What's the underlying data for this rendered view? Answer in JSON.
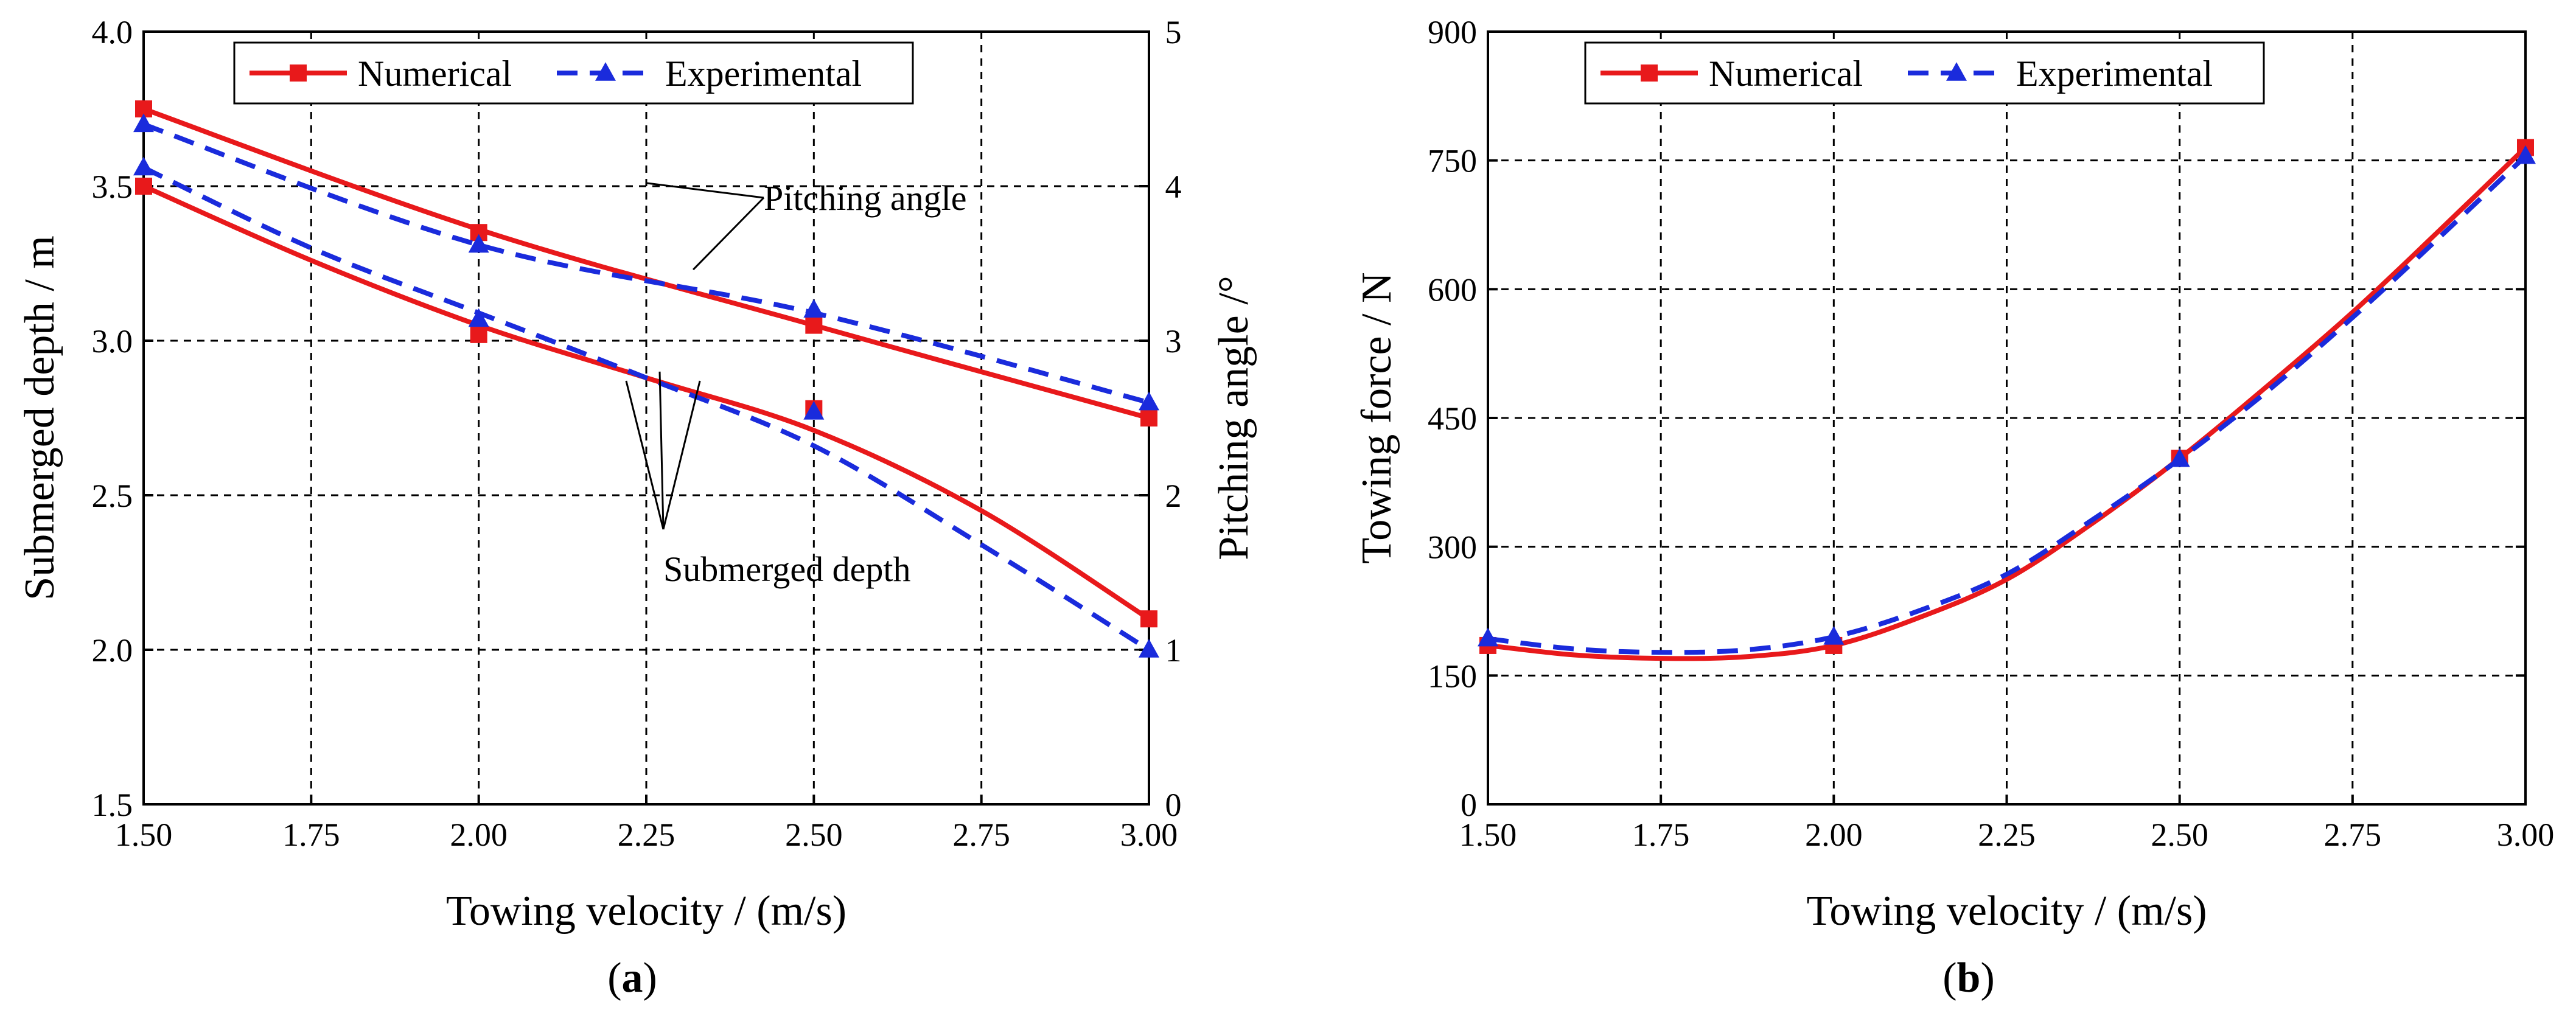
{
  "chart_data": [
    {
      "type": "line",
      "panel_caption": "(a)",
      "caption_letter": "a",
      "xlabel": "Towing velocity / (m/s)",
      "ylabel": "Submerged depth / m",
      "y2label": "Pitching angle /°",
      "xlim": [
        1.5,
        3.0
      ],
      "ylim": [
        1.5,
        4.0
      ],
      "y2lim": [
        0,
        5
      ],
      "xticks": [
        "1.50",
        "1.75",
        "2.00",
        "2.25",
        "2.50",
        "2.75",
        "3.00"
      ],
      "yticks": [
        "1.5",
        "2.0",
        "2.5",
        "3.0",
        "3.5",
        "4.0"
      ],
      "y2ticks": [
        "0",
        "1",
        "2",
        "3",
        "4",
        "5"
      ],
      "grid": true,
      "legend": {
        "position": "top-left",
        "entries": [
          {
            "label": "Numerical",
            "color": "#e8191b",
            "marker": "square",
            "dashed": false
          },
          {
            "label": "Experimental",
            "color": "#1a2bdc",
            "marker": "triangle",
            "dashed": true
          }
        ]
      },
      "annotations": [
        {
          "text": "Pitching angle",
          "points": [
            [
              2.25,
              3.51
            ],
            [
              2.32,
              3.23
            ]
          ]
        },
        {
          "text": "Submerged depth",
          "points": [
            [
              2.22,
              2.87
            ],
            [
              2.27,
              2.9
            ],
            [
              2.33,
              2.87
            ]
          ]
        }
      ],
      "series": [
        {
          "name": "Numerical",
          "quantity": "Pitching angle",
          "axis": "y2",
          "color": "#e8191b",
          "dashed": false,
          "marker": "square",
          "x": [
            1.5,
            2.0,
            2.5,
            3.0
          ],
          "values": [
            4.5,
            3.7,
            3.1,
            2.5
          ],
          "curve_x": [
            1.5,
            2.0,
            2.5,
            3.0
          ],
          "curve_values": [
            4.5,
            3.72,
            3.1,
            2.5
          ]
        },
        {
          "name": "Experimental",
          "quantity": "Pitching angle",
          "axis": "y2",
          "color": "#1a2bdc",
          "dashed": true,
          "marker": "triangle",
          "x": [
            1.5,
            2.0,
            2.5,
            3.0
          ],
          "values": [
            4.4,
            3.62,
            3.2,
            2.6
          ],
          "curve_x": [
            1.5,
            2.0,
            2.5,
            3.0
          ],
          "curve_values": [
            4.4,
            3.62,
            3.18,
            2.6
          ]
        },
        {
          "name": "Numerical",
          "quantity": "Submerged depth",
          "axis": "y",
          "color": "#e8191b",
          "dashed": false,
          "marker": "square",
          "x": [
            1.5,
            2.0,
            2.5,
            3.0
          ],
          "values": [
            3.5,
            3.02,
            2.78,
            2.1
          ],
          "curve_x": [
            1.5,
            1.75,
            2.0,
            2.25,
            2.5,
            2.75,
            3.0
          ],
          "curve_values": [
            3.5,
            3.26,
            3.05,
            2.88,
            2.71,
            2.45,
            2.1
          ]
        },
        {
          "name": "Experimental",
          "quantity": "Submerged depth",
          "axis": "y",
          "color": "#1a2bdc",
          "dashed": true,
          "marker": "triangle",
          "x": [
            1.5,
            2.0,
            2.5,
            3.0
          ],
          "values": [
            3.56,
            3.07,
            2.77,
            2.0
          ],
          "curve_x": [
            1.5,
            1.75,
            2.0,
            2.25,
            2.5,
            2.75,
            3.0
          ],
          "curve_values": [
            3.56,
            3.3,
            3.09,
            2.88,
            2.66,
            2.34,
            2.0
          ]
        }
      ]
    },
    {
      "type": "line",
      "panel_caption": "(b)",
      "caption_letter": "b",
      "xlabel": "Towing velocity / (m/s)",
      "ylabel": "Towing force / N",
      "xlim": [
        1.5,
        3.0
      ],
      "ylim": [
        0,
        900
      ],
      "xticks": [
        "1.50",
        "1.75",
        "2.00",
        "2.25",
        "2.50",
        "2.75",
        "3.00"
      ],
      "yticks": [
        "0",
        "150",
        "300",
        "450",
        "600",
        "750",
        "900"
      ],
      "grid": true,
      "legend": {
        "position": "top-left",
        "entries": [
          {
            "label": "Numerical",
            "color": "#e8191b",
            "marker": "square",
            "dashed": false
          },
          {
            "label": "Experimental",
            "color": "#1a2bdc",
            "marker": "triangle",
            "dashed": true
          }
        ]
      },
      "series": [
        {
          "name": "Numerical",
          "quantity": "Towing force",
          "axis": "y",
          "color": "#e8191b",
          "dashed": false,
          "marker": "square",
          "x": [
            1.5,
            2.0,
            2.5,
            3.0
          ],
          "values": [
            185,
            185,
            403,
            765
          ],
          "curve_x": [
            1.5,
            1.625,
            1.75,
            1.875,
            2.0,
            2.125,
            2.25,
            2.375,
            2.5,
            2.625,
            2.75,
            2.875,
            3.0
          ],
          "curve_values": [
            185,
            174,
            170,
            172,
            185,
            218,
            262,
            328,
            403,
            486,
            573,
            668,
            765
          ]
        },
        {
          "name": "Experimental",
          "quantity": "Towing force",
          "axis": "y",
          "color": "#1a2bdc",
          "dashed": true,
          "marker": "triangle",
          "x": [
            1.5,
            2.0,
            2.5,
            3.0
          ],
          "values": [
            193,
            195,
            402,
            755
          ],
          "curve_x": [
            1.5,
            1.625,
            1.75,
            1.875,
            2.0,
            2.125,
            2.25,
            2.375,
            2.5,
            2.625,
            2.75,
            2.875,
            3.0
          ],
          "curve_values": [
            193,
            181,
            177,
            180,
            195,
            226,
            268,
            332,
            402,
            480,
            567,
            660,
            755
          ]
        }
      ]
    }
  ]
}
